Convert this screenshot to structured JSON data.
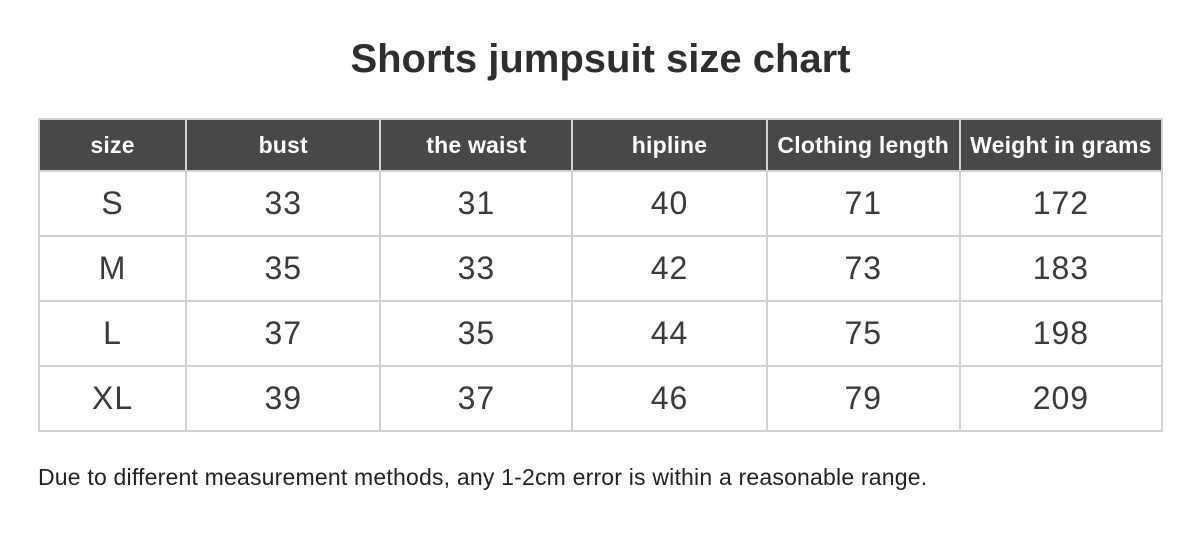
{
  "title": "Shorts jumpsuit size chart",
  "table": {
    "headers": [
      "size",
      "bust",
      "the waist",
      "hipline",
      "Clothing length",
      "Weight in grams"
    ],
    "rows": [
      [
        "S",
        "33",
        "31",
        "40",
        "71",
        "172"
      ],
      [
        "M",
        "35",
        "33",
        "42",
        "73",
        "183"
      ],
      [
        "L",
        "37",
        "35",
        "44",
        "75",
        "198"
      ],
      [
        "XL",
        "39",
        "37",
        "46",
        "79",
        "209"
      ]
    ]
  },
  "note": "Due to different measurement methods, any 1-2cm error is within a reasonable range.",
  "colors": {
    "header_background": "#484848",
    "header_text": "#ffffff",
    "cell_text": "#3a3a3a",
    "grid_border": "#d2d2d2",
    "page_background": "#ffffff"
  },
  "chart_data": {
    "type": "table",
    "title": "Shorts jumpsuit size chart",
    "columns": [
      "size",
      "bust",
      "the waist",
      "hipline",
      "Clothing length",
      "Weight in grams"
    ],
    "rows": [
      {
        "size": "S",
        "bust": 33,
        "the_waist": 31,
        "hipline": 40,
        "clothing_length": 71,
        "weight_in_grams": 172
      },
      {
        "size": "M",
        "bust": 35,
        "the_waist": 33,
        "hipline": 42,
        "clothing_length": 73,
        "weight_in_grams": 183
      },
      {
        "size": "L",
        "bust": 37,
        "the_waist": 35,
        "hipline": 44,
        "clothing_length": 75,
        "weight_in_grams": 198
      },
      {
        "size": "XL",
        "bust": 39,
        "the_waist": 37,
        "hipline": 46,
        "clothing_length": 79,
        "weight_in_grams": 209
      }
    ],
    "footnote": "Due to different measurement methods, any 1-2cm error is within a reasonable range."
  }
}
